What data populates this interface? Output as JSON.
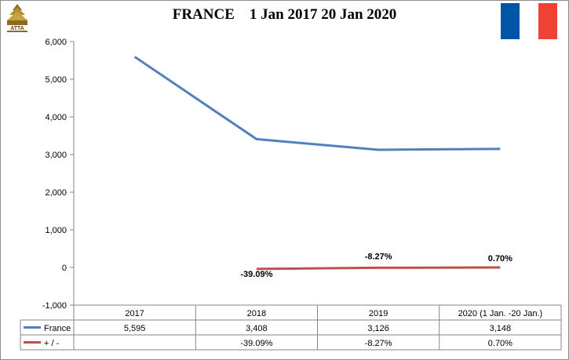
{
  "title": "FRANCE    1 Jan 2017 20 Jan 2020",
  "logo": {
    "icon": "atta-logo-icon",
    "text": "ATTA"
  },
  "flag": {
    "icon": "france-flag-icon",
    "colors": [
      "#0055A4",
      "#FFFFFF",
      "#EF4135"
    ]
  },
  "chart_data": {
    "type": "line",
    "title": "FRANCE    1 Jan 2017 20 Jan 2020",
    "categories": [
      "2017",
      "2018",
      "2019",
      "2020 (1 Jan. -20 Jan.)"
    ],
    "y_ticks": [
      "6,000",
      "5,000",
      "4,000",
      "3,000",
      "2,000",
      "1,000",
      "0",
      "-1,000"
    ],
    "ylim": [
      -1000,
      6000
    ],
    "grid": false,
    "legend": "data-table",
    "series": [
      {
        "name": "France",
        "color": "#4F81BD",
        "values": [
          5595,
          3408,
          3126,
          3148
        ],
        "table_values": [
          "5,595",
          "3,408",
          "3,126",
          "3,148"
        ]
      },
      {
        "name": "+ / -",
        "color": "#C0504D",
        "values": [
          null,
          -39.09,
          -8.27,
          0.7
        ],
        "table_values": [
          "",
          "-39.09%",
          "-8.27%",
          "0.70%"
        ],
        "data_labels": [
          "",
          "-39.09%",
          "-8.27%",
          "0.70%"
        ]
      }
    ]
  }
}
